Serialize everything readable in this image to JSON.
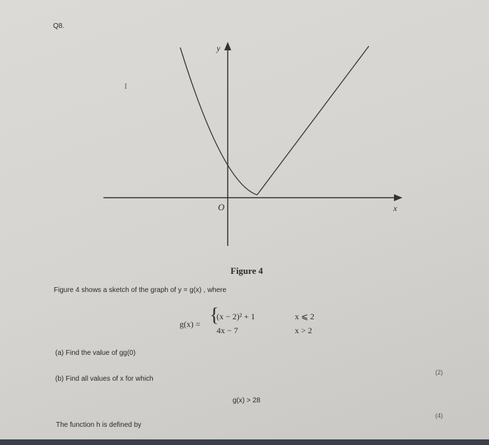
{
  "question": {
    "number": "Q8.",
    "cursor_mark": "I"
  },
  "figure": {
    "y_label": "y",
    "x_label": "x",
    "origin_label": "O",
    "caption": "Figure 4"
  },
  "intro": "Figure 4 shows a sketch of the graph of y = g(x) , where",
  "definition": {
    "lhs": "g(x) =",
    "cases": [
      {
        "expr": "(x − 2)² + 1",
        "cond": "x ⩽ 2"
      },
      {
        "expr": "4x − 7",
        "cond": "x > 2"
      }
    ]
  },
  "parts": [
    {
      "text": "(a)  Find the value of gg(0)",
      "marks": "(2)"
    },
    {
      "text": "(b)  Find all values of x for which",
      "inequality": "g(x) > 28",
      "marks": "(4)"
    }
  ],
  "footer": "The function h is defined by"
}
